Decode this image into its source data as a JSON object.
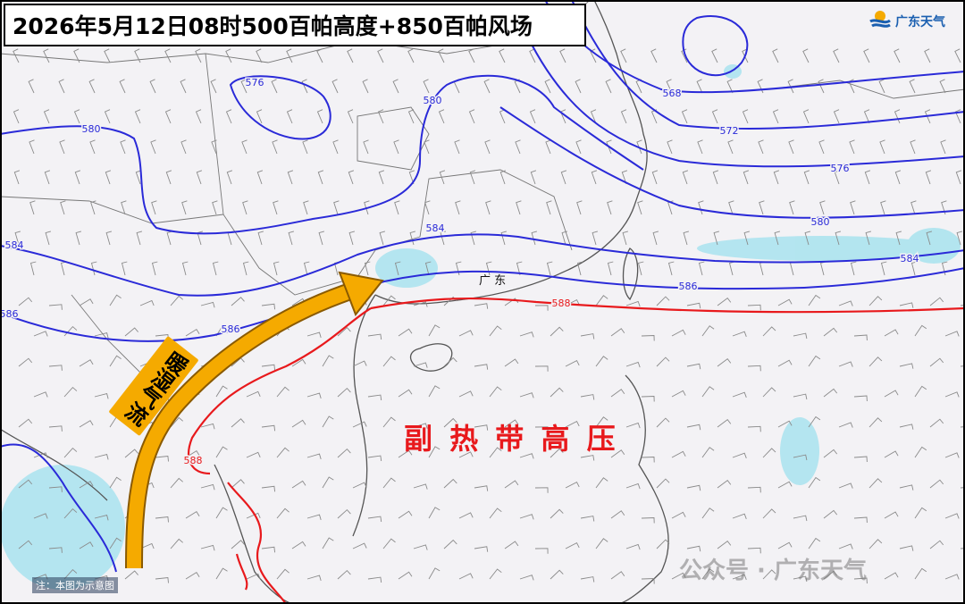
{
  "header": {
    "title": "2026年5月12日08时500百帕高度+850百帕风场",
    "logo": "广东天气"
  },
  "map": {
    "region_label": "广 东",
    "stream_label": "暖湿气流",
    "system_label": "副 热 带 高 压",
    "note": "注：本图为示意图",
    "contour_labels": [
      "576",
      "580",
      "580",
      "568",
      "572",
      "576",
      "580",
      "584",
      "584",
      "584",
      "586",
      "586",
      "586",
      "588",
      "588"
    ]
  },
  "watermark": "公众号 · 广东天气"
}
